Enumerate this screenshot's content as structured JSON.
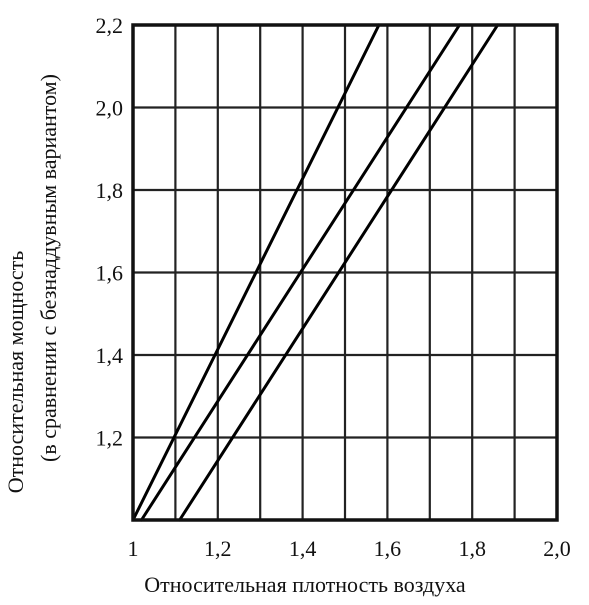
{
  "chart_data": {
    "type": "line",
    "title": "",
    "xlabel": "Относительная плотность воздуха",
    "ylabel_line1": "Относительная  мощность",
    "ylabel_line2": "(в сравнении с безнаддувным вариантом)",
    "xlim": [
      1.0,
      2.0
    ],
    "ylim": [
      1.0,
      2.2
    ],
    "xticks": [
      1.0,
      1.2,
      1.4,
      1.6,
      1.8,
      2.0
    ],
    "xtick_labels": [
      "1",
      "1,2",
      "1,4",
      "1,6",
      "1,8",
      "2,0"
    ],
    "yticks": [
      1.2,
      1.4,
      1.6,
      1.8,
      2.0,
      2.2
    ],
    "ytick_labels": [
      "1,2",
      "1,4",
      "1,6",
      "1,8",
      "2,0",
      "2,2"
    ],
    "grid": true,
    "legend": "none",
    "series": [
      {
        "x": [
          1.0,
          1.58
        ],
        "y": [
          1.0,
          2.2
        ]
      },
      {
        "x": [
          1.02,
          1.77
        ],
        "y": [
          1.0,
          2.2
        ]
      },
      {
        "x": [
          1.11,
          1.86
        ],
        "y": [
          1.0,
          2.2
        ]
      }
    ]
  }
}
